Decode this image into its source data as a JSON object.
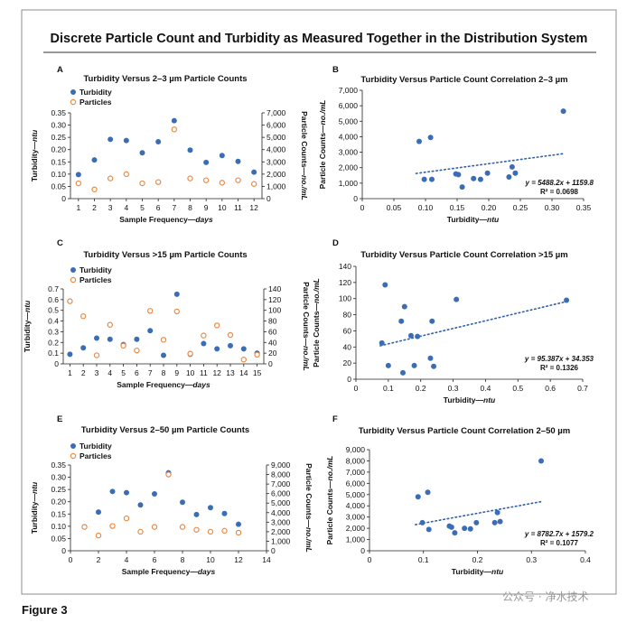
{
  "figure": {
    "title": "Discrete Particle Count and Turbidity as Measured Together in the Distribution System",
    "caption": "Figure 3",
    "watermark": "公众号 · 净水技术",
    "colors": {
      "turbidity": "#3a6db5",
      "particles": "#ec8a44",
      "trendline": "#2f5fa8"
    }
  },
  "chart_data": [
    {
      "id": "A",
      "type": "scatter",
      "title": "Turbidity Versus 2–3 µm Particle Counts",
      "xlabel": "Sample Frequency",
      "xlabel_unit": "days",
      "ylabel_left": "Turbidity",
      "ylabel_left_unit": "ntu",
      "ylabel_right": "Particle Counts",
      "ylabel_right_unit": "no./mL",
      "legend": [
        "Turbidity",
        "Particles"
      ],
      "legend_position": "top-left",
      "x_ticks": [
        "1",
        "2",
        "3",
        "4",
        "5",
        "6",
        "7",
        "8",
        "9",
        "10",
        "11",
        "12"
      ],
      "x_domain": [
        0.5,
        12.5
      ],
      "ylim_left": [
        0,
        0.35
      ],
      "y_ticks_left": [
        "0",
        "0.05",
        "0.10",
        "0.15",
        "0.20",
        "0.25",
        "0.30",
        "0.35"
      ],
      "ylim_right": [
        0,
        7000
      ],
      "y_ticks_right": [
        "0",
        "1,000",
        "2,000",
        "3,000",
        "4,000",
        "5,000",
        "6,000",
        "7,000"
      ],
      "series": [
        {
          "name": "Turbidity",
          "axis": "left",
          "x": [
            1,
            2,
            3,
            4,
            5,
            6,
            7,
            8,
            9,
            10,
            11,
            12
          ],
          "values": [
            0.098,
            0.158,
            0.242,
            0.237,
            0.187,
            0.232,
            0.318,
            0.198,
            0.148,
            0.176,
            0.152,
            0.108
          ]
        },
        {
          "name": "Particles",
          "axis": "right",
          "x": [
            1,
            2,
            3,
            4,
            5,
            6,
            7,
            8,
            9,
            10,
            11,
            12
          ],
          "values": [
            1250,
            750,
            1650,
            2000,
            1250,
            1350,
            5650,
            1650,
            1500,
            1300,
            1500,
            1200
          ]
        }
      ]
    },
    {
      "id": "B",
      "type": "scatter",
      "title": "Turbidity Versus Particle Count Correlation 2–3 µm",
      "xlabel": "Turbidity",
      "xlabel_unit": "ntu",
      "ylabel": "Particle Counts",
      "ylabel_unit": "no./mL",
      "xlim": [
        0,
        0.35
      ],
      "x_ticks": [
        "0",
        "0.05",
        "0.10",
        "0.15",
        "0.20",
        "0.25",
        "0.30",
        "0.35"
      ],
      "ylim": [
        0,
        7000
      ],
      "y_ticks": [
        "0",
        "1,000",
        "2,000",
        "3,000",
        "4,000",
        "5,000",
        "6,000",
        "7,000"
      ],
      "trendline": {
        "slope": 5488.2,
        "intercept": 1159.8,
        "x_range": [
          0.085,
          0.32
        ]
      },
      "equation": "y = 5488.2x + 1159.8",
      "r2": "R² = 0.0698",
      "points": [
        {
          "x": 0.09,
          "y": 3700
        },
        {
          "x": 0.098,
          "y": 1250
        },
        {
          "x": 0.108,
          "y": 3950
        },
        {
          "x": 0.11,
          "y": 1250
        },
        {
          "x": 0.148,
          "y": 1600
        },
        {
          "x": 0.152,
          "y": 1550
        },
        {
          "x": 0.158,
          "y": 750
        },
        {
          "x": 0.176,
          "y": 1300
        },
        {
          "x": 0.187,
          "y": 1250
        },
        {
          "x": 0.198,
          "y": 1650
        },
        {
          "x": 0.232,
          "y": 1400
        },
        {
          "x": 0.237,
          "y": 2050
        },
        {
          "x": 0.242,
          "y": 1650
        },
        {
          "x": 0.318,
          "y": 5650
        }
      ]
    },
    {
      "id": "C",
      "type": "scatter",
      "title": "Turbidity Versus >15 µm Particle Counts",
      "xlabel": "Sample Frequency",
      "xlabel_unit": "days",
      "ylabel_left": "Turbidity",
      "ylabel_left_unit": "ntu",
      "ylabel_right": "Particle Counts",
      "ylabel_right_unit": "no./mL",
      "legend": [
        "Turbidity",
        "Particles"
      ],
      "legend_position": "top-left",
      "x_ticks": [
        "1",
        "2",
        "3",
        "4",
        "5",
        "6",
        "7",
        "8",
        "9",
        "10",
        "11",
        "12",
        "13",
        "14",
        "15"
      ],
      "x_domain": [
        0.5,
        15.5
      ],
      "ylim_left": [
        0,
        0.7
      ],
      "y_ticks_left": [
        "0",
        "0.1",
        "0.2",
        "0.3",
        "0.4",
        "0.5",
        "0.6",
        "0.7"
      ],
      "ylim_right": [
        0,
        140
      ],
      "y_ticks_right": [
        "0",
        "20",
        "40",
        "60",
        "80",
        "100",
        "120",
        "140"
      ],
      "series": [
        {
          "name": "Turbidity",
          "axis": "left",
          "x": [
            1,
            2,
            3,
            4,
            5,
            6,
            7,
            8,
            9,
            10,
            11,
            12,
            13,
            14,
            15
          ],
          "values": [
            0.09,
            0.15,
            0.24,
            0.23,
            0.18,
            0.23,
            0.31,
            0.08,
            0.65,
            0.09,
            0.19,
            0.14,
            0.17,
            0.14,
            0.1
          ]
        },
        {
          "name": "Particles",
          "axis": "right",
          "x": [
            1,
            2,
            3,
            4,
            5,
            6,
            7,
            8,
            9,
            10,
            11,
            12,
            13,
            14,
            15
          ],
          "values": [
            117,
            89,
            16,
            73,
            34,
            25,
            99,
            45,
            98,
            19,
            53,
            72,
            54,
            8,
            17
          ]
        }
      ]
    },
    {
      "id": "D",
      "type": "scatter",
      "title": "Turbidity Versus Particle Count Correlation >15 µm",
      "xlabel": "Turbidity",
      "xlabel_unit": "ntu",
      "ylabel": "Particle Counts",
      "ylabel_unit": "no./mL",
      "xlim": [
        0,
        0.7
      ],
      "x_ticks": [
        "0",
        "0.1",
        "0.2",
        "0.3",
        "0.4",
        "0.5",
        "0.6",
        "0.7"
      ],
      "ylim": [
        0,
        140
      ],
      "y_ticks": [
        "0",
        "20",
        "40",
        "60",
        "80",
        "100",
        "120",
        "140"
      ],
      "trendline": {
        "slope": 95.387,
        "intercept": 34.353,
        "x_range": [
          0.075,
          0.65
        ]
      },
      "equation": "y = 95.387x + 34.353",
      "r2": "R² = 0.1326",
      "points": [
        {
          "x": 0.08,
          "y": 45
        },
        {
          "x": 0.09,
          "y": 117
        },
        {
          "x": 0.1,
          "y": 17
        },
        {
          "x": 0.14,
          "y": 72
        },
        {
          "x": 0.145,
          "y": 8
        },
        {
          "x": 0.15,
          "y": 90
        },
        {
          "x": 0.17,
          "y": 54
        },
        {
          "x": 0.18,
          "y": 17
        },
        {
          "x": 0.19,
          "y": 53
        },
        {
          "x": 0.23,
          "y": 26
        },
        {
          "x": 0.235,
          "y": 72
        },
        {
          "x": 0.24,
          "y": 16
        },
        {
          "x": 0.31,
          "y": 99
        },
        {
          "x": 0.65,
          "y": 98
        }
      ]
    },
    {
      "id": "E",
      "type": "scatter",
      "title": "Turbidity Versus 2–50 µm Particle Counts",
      "xlabel": "Sample Frequency",
      "xlabel_unit": "days",
      "ylabel_left": "Turbidity",
      "ylabel_left_unit": "ntu",
      "ylabel_right": "Particle Counts",
      "ylabel_right_unit": "no./mL",
      "legend": [
        "Turbidity",
        "Particles"
      ],
      "legend_position": "top-left",
      "x_ticks": [
        "0",
        "2",
        "4",
        "6",
        "8",
        "10",
        "12",
        "14"
      ],
      "x_domain": [
        0,
        14
      ],
      "ylim_left": [
        0,
        0.35
      ],
      "y_ticks_left": [
        "0",
        "0.05",
        "0.10",
        "0.15",
        "0.20",
        "0.25",
        "0.30",
        "0.35"
      ],
      "ylim_right": [
        0,
        9000
      ],
      "y_ticks_right": [
        "0",
        "1,000",
        "2,000",
        "3,000",
        "4,000",
        "5,000",
        "6,000",
        "7,000",
        "8,000",
        "9,000"
      ],
      "series": [
        {
          "name": "Turbidity",
          "axis": "left",
          "x": [
            1,
            2,
            3,
            4,
            5,
            6,
            7,
            8,
            9,
            10,
            11,
            12
          ],
          "values": [
            0.098,
            0.158,
            0.242,
            0.237,
            0.187,
            0.232,
            0.318,
            0.198,
            0.148,
            0.176,
            0.152,
            0.108
          ]
        },
        {
          "name": "Particles",
          "axis": "right",
          "x": [
            1,
            2,
            3,
            4,
            5,
            6,
            7,
            8,
            9,
            10,
            11,
            12
          ],
          "values": [
            2500,
            1600,
            2600,
            3400,
            2000,
            2500,
            8000,
            2500,
            2200,
            2000,
            2100,
            1900
          ]
        }
      ]
    },
    {
      "id": "F",
      "type": "scatter",
      "title": "Turbidity Versus Particle Count Correlation 2–50 µm",
      "xlabel": "Turbidity",
      "xlabel_unit": "ntu",
      "ylabel": "Particle Counts",
      "ylabel_unit": "no./mL",
      "xlim": [
        0,
        0.4
      ],
      "x_ticks": [
        "0",
        "0.1",
        "0.2",
        "0.3",
        "0.4"
      ],
      "ylim": [
        0,
        9000
      ],
      "y_ticks": [
        "0",
        "1,000",
        "2,000",
        "3,000",
        "4,000",
        "5,000",
        "6,000",
        "7,000",
        "8,000",
        "9,000"
      ],
      "trendline": {
        "slope": 8782.7,
        "intercept": 1579.2,
        "x_range": [
          0.085,
          0.32
        ]
      },
      "equation": "y = 8782.7x + 1579.2",
      "r2": "R² = 0.1077",
      "points": [
        {
          "x": 0.09,
          "y": 4800
        },
        {
          "x": 0.098,
          "y": 2500
        },
        {
          "x": 0.108,
          "y": 5200
        },
        {
          "x": 0.11,
          "y": 1900
        },
        {
          "x": 0.148,
          "y": 2200
        },
        {
          "x": 0.152,
          "y": 2100
        },
        {
          "x": 0.158,
          "y": 1600
        },
        {
          "x": 0.176,
          "y": 2000
        },
        {
          "x": 0.187,
          "y": 1950
        },
        {
          "x": 0.198,
          "y": 2500
        },
        {
          "x": 0.232,
          "y": 2500
        },
        {
          "x": 0.237,
          "y": 3400
        },
        {
          "x": 0.242,
          "y": 2600
        },
        {
          "x": 0.318,
          "y": 8000
        }
      ]
    }
  ]
}
